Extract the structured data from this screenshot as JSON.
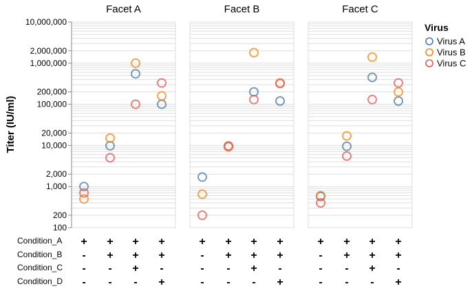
{
  "chart_data": {
    "type": "scatter",
    "y_axis": {
      "label": "Titer (IU/ml)",
      "scale": "log",
      "range": [
        100,
        10000000
      ],
      "tick_labels": [
        "10,000,000",
        "2,000,000",
        "1,000,000",
        "200,000",
        "100,000",
        "20,000",
        "10,000",
        "2,000",
        "1,000",
        "200",
        "100"
      ],
      "tick_values": [
        10000000,
        2000000,
        1000000,
        200000,
        100000,
        20000,
        10000,
        2000,
        1000,
        200,
        100
      ]
    },
    "grid": true,
    "legend": {
      "title": "Virus",
      "placement": "right",
      "entries": [
        {
          "name": "Virus A",
          "color": "#4c78a8"
        },
        {
          "name": "Virus B",
          "color": "#f58518"
        },
        {
          "name": "Virus C",
          "color": "#e45756"
        }
      ]
    },
    "conditions": {
      "rows": [
        "Condition_A",
        "Condition_B",
        "Condition_C",
        "Condition_D"
      ],
      "columns": [
        [
          "+",
          "-",
          "-",
          "-"
        ],
        [
          "+",
          "+",
          "-",
          "-"
        ],
        [
          "+",
          "+",
          "+",
          "-"
        ],
        [
          "+",
          "+",
          "-",
          "+"
        ]
      ]
    },
    "facets": [
      {
        "title": "Facet A",
        "series": [
          {
            "name": "Virus A",
            "values": [
              1000,
              9800,
              550000,
              100000
            ]
          },
          {
            "name": "Virus B",
            "values": [
              500,
              15000,
              1000000,
              160000
            ]
          },
          {
            "name": "Virus C",
            "values": [
              700,
              5000,
              100000,
              330000
            ]
          }
        ]
      },
      {
        "title": "Facet B",
        "series": [
          {
            "name": "Virus A",
            "values": [
              1700,
              9500,
              200000,
              120000
            ]
          },
          {
            "name": "Virus B",
            "values": [
              650,
              9200,
              1800000,
              330000
            ]
          },
          {
            "name": "Virus C",
            "values": [
              200,
              9700,
              130000,
              320000
            ]
          }
        ]
      },
      {
        "title": "Facet C",
        "series": [
          {
            "name": "Virus A",
            "values": [
              570,
              9500,
              450000,
              120000
            ]
          },
          {
            "name": "Virus B",
            "values": [
              600,
              17000,
              1400000,
              200000
            ]
          },
          {
            "name": "Virus C",
            "values": [
              400,
              5500,
              130000,
              330000
            ]
          }
        ]
      }
    ]
  }
}
